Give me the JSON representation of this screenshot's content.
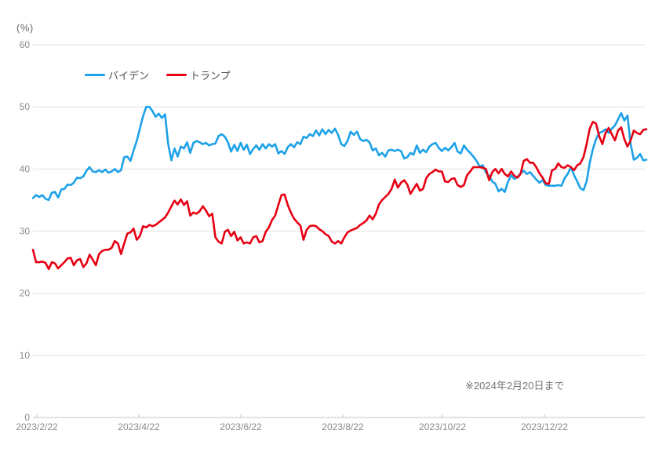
{
  "chart": {
    "unit_label": "(%)",
    "note": "※2024年2月20日まで"
  },
  "chart_data": {
    "type": "line",
    "title": "",
    "ylabel": "(%)",
    "ylim": [
      0,
      60
    ],
    "y_ticks": [
      0,
      10,
      20,
      30,
      40,
      50,
      60
    ],
    "grid": true,
    "legend_position": "top-left-inside",
    "note": "※2024年2月20日まで",
    "x_range": [
      "2023/2/22",
      "2024/2/20"
    ],
    "x_tick_labels": [
      "2023/2/22",
      "2023/4/22",
      "2023/6/22",
      "2023/8/22",
      "2023/10/22",
      "2023/12/22"
    ],
    "sampling": "values evenly spaced in time from 2023/2/22 to 2024/2/20 (approx. every 2 days)",
    "series": [
      {
        "name": "バイデン",
        "color": "#1da1e8",
        "values": [
          35.3,
          35.8,
          35.5,
          35.8,
          35.2,
          35.0,
          36.2,
          36.3,
          35.4,
          36.7,
          36.8,
          37.5,
          37.4,
          37.8,
          38.6,
          38.5,
          38.8,
          39.7,
          40.3,
          39.6,
          39.5,
          39.8,
          39.5,
          39.9,
          39.4,
          39.6,
          40.0,
          39.5,
          39.8,
          41.9,
          42.0,
          41.3,
          43.0,
          44.5,
          46.5,
          48.5,
          50.0,
          50.0,
          49.3,
          48.4,
          48.9,
          48.2,
          48.8,
          44.0,
          41.4,
          43.3,
          42.0,
          43.6,
          43.3,
          44.3,
          42.6,
          44.2,
          44.5,
          44.3,
          44.0,
          44.2,
          43.8,
          44.0,
          44.1,
          45.3,
          45.6,
          45.2,
          44.3,
          42.8,
          43.9,
          42.9,
          44.2,
          43.1,
          43.9,
          42.4,
          43.2,
          43.8,
          43.1,
          44.0,
          43.3,
          44.0,
          43.6,
          44.0,
          42.5,
          42.9,
          42.4,
          43.5,
          44.0,
          43.5,
          44.3,
          44.0,
          45.2,
          45.0,
          45.6,
          45.3,
          46.2,
          45.4,
          46.4,
          45.6,
          46.3,
          45.8,
          46.5,
          45.5,
          44.0,
          43.7,
          44.5,
          46.0,
          45.5,
          46.0,
          44.8,
          44.5,
          44.7,
          44.3,
          43.0,
          43.3,
          42.2,
          42.6,
          42.0,
          43.0,
          43.1,
          42.9,
          43.1,
          42.9,
          41.7,
          41.9,
          42.6,
          42.3,
          43.8,
          42.6,
          43.1,
          42.7,
          43.6,
          44.0,
          44.2,
          43.4,
          42.9,
          43.4,
          43.0,
          43.5,
          44.2,
          42.8,
          42.5,
          43.8,
          43.1,
          42.6,
          42.0,
          41.3,
          40.4,
          40.6,
          39.4,
          38.9,
          38.0,
          37.6,
          36.4,
          36.8,
          36.3,
          37.9,
          39.0,
          38.4,
          38.7,
          39.3,
          39.7,
          39.2,
          39.5,
          38.9,
          38.3,
          37.8,
          38.2,
          37.4,
          37.3,
          37.3,
          37.3,
          37.4,
          37.3,
          38.5,
          39.2,
          40.3,
          39.0,
          38.0,
          36.9,
          36.6,
          38.0,
          41.0,
          43.2,
          44.8,
          45.8,
          46.0,
          46.4,
          45.8,
          46.5,
          47.0,
          48.0,
          49.0,
          47.8,
          48.6,
          44.0,
          41.5,
          41.8,
          42.4,
          41.4,
          41.5
        ]
      },
      {
        "name": "トランプ",
        "color": "#e60012",
        "values": [
          27.0,
          25.0,
          25.0,
          25.1,
          24.9,
          23.9,
          25.0,
          24.8,
          24.0,
          24.5,
          25.0,
          25.6,
          25.7,
          24.5,
          25.3,
          25.5,
          24.2,
          24.8,
          26.2,
          25.4,
          24.5,
          26.3,
          26.8,
          27.0,
          27.0,
          27.3,
          28.4,
          28.0,
          26.3,
          28.0,
          29.6,
          29.8,
          30.4,
          28.6,
          29.2,
          30.8,
          30.6,
          31.0,
          30.8,
          31.0,
          31.4,
          31.8,
          32.2,
          33.0,
          34.0,
          34.9,
          34.3,
          35.1,
          34.2,
          34.8,
          32.5,
          33.0,
          32.8,
          33.2,
          34.0,
          33.3,
          32.4,
          32.8,
          29.0,
          28.3,
          28.0,
          29.9,
          30.2,
          29.2,
          29.9,
          28.5,
          29.0,
          28.0,
          28.2,
          28.0,
          29.0,
          29.2,
          28.2,
          28.4,
          29.9,
          30.6,
          31.8,
          32.5,
          34.2,
          35.8,
          35.9,
          34.2,
          33.0,
          32.0,
          31.4,
          30.9,
          28.6,
          30.2,
          30.8,
          30.9,
          30.8,
          30.3,
          30.0,
          29.5,
          29.2,
          28.3,
          28.0,
          28.4,
          28.0,
          29.0,
          29.8,
          30.1,
          30.3,
          30.5,
          31.0,
          31.3,
          31.7,
          32.5,
          31.9,
          32.8,
          34.3,
          35.0,
          35.5,
          36.0,
          36.8,
          38.3,
          37.0,
          37.8,
          38.2,
          37.5,
          36.0,
          36.8,
          37.6,
          36.5,
          36.8,
          38.5,
          39.2,
          39.5,
          39.9,
          39.6,
          39.6,
          38.0,
          37.9,
          38.4,
          38.5,
          37.4,
          37.1,
          37.4,
          39.0,
          39.6,
          40.3,
          40.3,
          40.3,
          40.2,
          40.0,
          38.2,
          39.5,
          40.0,
          39.3,
          40.0,
          39.2,
          38.8,
          39.6,
          38.9,
          38.6,
          39.2,
          41.3,
          41.6,
          41.0,
          41.0,
          40.3,
          39.3,
          38.6,
          37.7,
          37.6,
          39.8,
          40.0,
          40.9,
          40.3,
          40.2,
          40.6,
          40.3,
          39.8,
          40.6,
          40.9,
          41.9,
          44.0,
          46.5,
          47.6,
          47.3,
          45.3,
          44.0,
          45.8,
          46.6,
          45.6,
          44.6,
          46.2,
          46.7,
          44.8,
          43.6,
          44.6,
          46.2,
          45.8,
          45.6,
          46.3,
          46.4
        ]
      }
    ]
  },
  "colors": {
    "background": "#ffffff",
    "gridline": "#e0e0e0",
    "axis_line": "#c4c4c4",
    "tick_text": "#8a8a8a",
    "legend_text": "#4d4d4d",
    "note_text": "#757575",
    "biden_line": "#1da1e8",
    "trump_line": "#e60012"
  }
}
